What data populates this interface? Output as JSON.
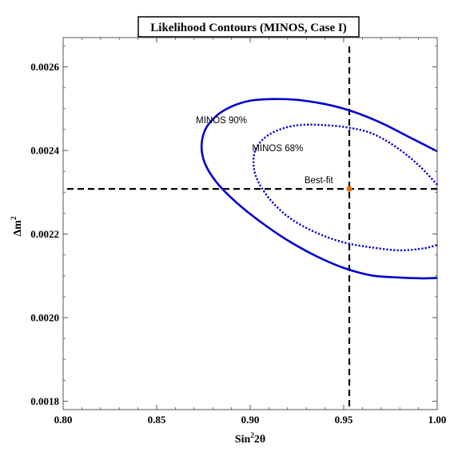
{
  "chart_data": {
    "type": "line",
    "title": "Likelihood Contours (MINOS, Case I)",
    "xlabel_base": "Sin",
    "xlabel_sup": "2",
    "xlabel_tail": "2θ",
    "ylabel_base": "Δm",
    "ylabel_sup": "2",
    "xlim": [
      0.8,
      1.0
    ],
    "ylim": [
      0.00178,
      0.00267
    ],
    "xticks": [
      0.8,
      0.85,
      0.9,
      0.95,
      1.0
    ],
    "xtick_labels": [
      "0.80",
      "0.85",
      "0.90",
      "0.95",
      "1.00"
    ],
    "yticks": [
      0.0018,
      0.002,
      0.0022,
      0.0024,
      0.0026
    ],
    "ytick_labels": [
      "0.0018",
      "0.0020",
      "0.0022",
      "0.0024",
      "0.0026"
    ],
    "grid": false,
    "series": [
      {
        "name": "MINOS 90%",
        "style": "solid",
        "color": "#0000cc",
        "x": [
          1.0,
          0.985,
          0.97,
          0.955,
          0.94,
          0.925,
          0.912,
          0.9,
          0.89,
          0.882,
          0.876,
          0.874,
          0.876,
          0.882,
          0.892,
          0.905,
          0.92,
          0.935,
          0.95,
          0.965,
          0.98,
          0.992,
          1.0
        ],
        "y": [
          0.002398,
          0.002432,
          0.002466,
          0.002493,
          0.002511,
          0.002521,
          0.002523,
          0.002519,
          0.002505,
          0.002483,
          0.00245,
          0.002408,
          0.002367,
          0.002324,
          0.002278,
          0.002231,
          0.002185,
          0.002148,
          0.002119,
          0.002101,
          0.002096,
          0.002094,
          0.002095
        ]
      },
      {
        "name": "MINOS 68%",
        "style": "dotted",
        "color": "#0000cc",
        "x": [
          1.0,
          0.99,
          0.978,
          0.965,
          0.952,
          0.938,
          0.925,
          0.914,
          0.906,
          0.902,
          0.903,
          0.91,
          0.921,
          0.935,
          0.95,
          0.965,
          0.98,
          0.993,
          1.0
        ],
        "y": [
          0.002318,
          0.002365,
          0.002408,
          0.002441,
          0.002455,
          0.002461,
          0.00246,
          0.002447,
          0.002423,
          0.002388,
          0.002339,
          0.002286,
          0.002239,
          0.002204,
          0.00218,
          0.002168,
          0.002161,
          0.002166,
          0.002174
        ]
      }
    ],
    "reference_lines": {
      "vertical_x": 0.953,
      "horizontal_y": 0.002308
    },
    "best_fit": {
      "x": 0.953,
      "y": 0.002308,
      "color": "#e07000"
    },
    "annotations": [
      {
        "text": "MINOS 90%",
        "x": 0.871,
        "y": 0.002465
      },
      {
        "text": "MINOS 68%",
        "x": 0.901,
        "y": 0.002398
      },
      {
        "text": "Best-fit",
        "x": 0.929,
        "y": 0.002322
      }
    ]
  }
}
